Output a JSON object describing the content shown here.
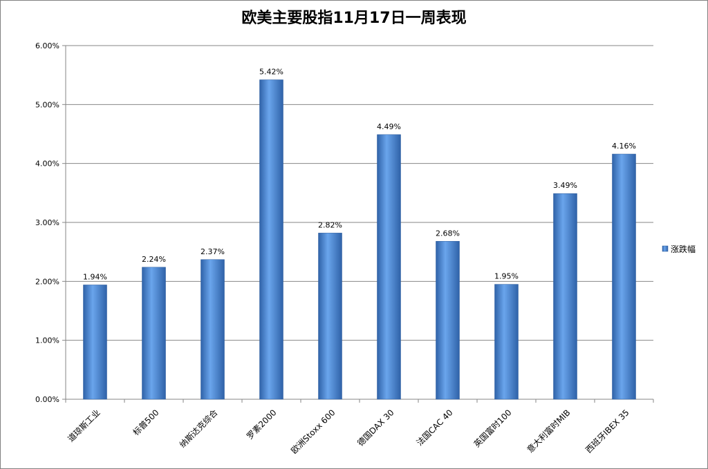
{
  "chart_data": {
    "type": "bar",
    "title": "欧美主要股指11月17日一周表现",
    "categories": [
      "道琼斯工业",
      "标普500",
      "纳斯达克综合",
      "罗素2000",
      "欧洲Stoxx 600",
      "德国DAX 30",
      "法国CAC 40",
      "英国富时100",
      "意大利富时MIB",
      "西班牙IBEX 35"
    ],
    "series": [
      {
        "name": "涨跌幅",
        "values": [
          1.94,
          2.24,
          2.37,
          5.42,
          2.82,
          4.49,
          2.68,
          1.95,
          3.49,
          4.16
        ],
        "labels": [
          "1.94%",
          "2.24%",
          "2.37%",
          "5.42%",
          "2.82%",
          "4.49%",
          "2.68%",
          "1.95%",
          "3.49%",
          "4.16%"
        ],
        "color": "#4a86d2"
      }
    ],
    "ylim": [
      0,
      6
    ],
    "yticks": [
      0,
      1,
      2,
      3,
      4,
      5,
      6
    ],
    "ytick_labels": [
      "0.00%",
      "1.00%",
      "2.00%",
      "3.00%",
      "4.00%",
      "5.00%",
      "6.00%"
    ],
    "grid": true,
    "legend_position": "right",
    "xlabel": "",
    "ylabel": ""
  },
  "colors": {
    "bar_light": "#6aa5ec",
    "bar_dark": "#2f62a8",
    "grid": "#868686",
    "axis": "#868686"
  }
}
